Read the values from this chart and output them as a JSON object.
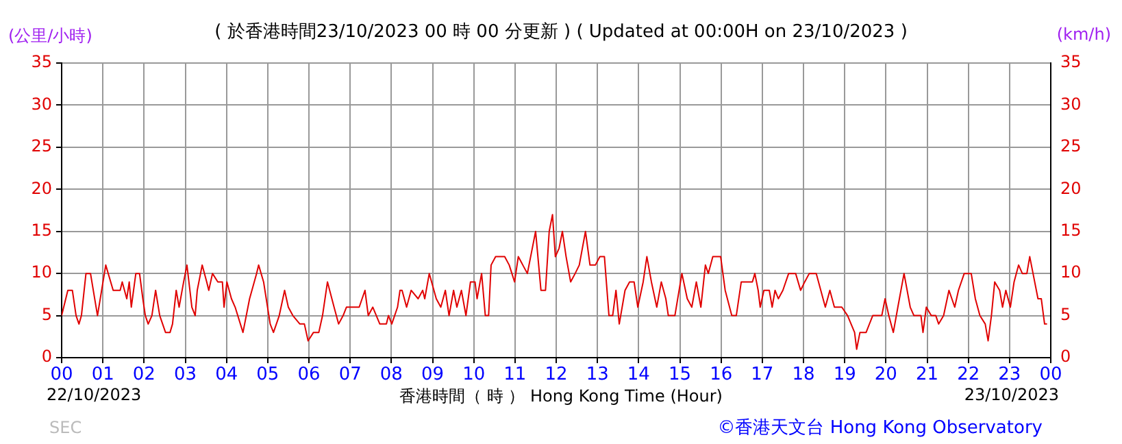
{
  "chart_data": {
    "type": "line",
    "title": "( 於香港時間23/10/2023 00 時 00 分更新 ) ( Updated at 00:00H on 23/10/2023 )",
    "ylabel": "(公里/小時)",
    "y2label": "(km/h)",
    "xlabel": "香港時間（ 時 ） Hong Kong Time (Hour)",
    "annotations": [
      "22/10/2023",
      "23/10/2023",
      "SEC",
      "©香港天文台 Hong Kong Observatory"
    ],
    "xlim": [
      0,
      24
    ],
    "xticks": [
      {
        "value": 0,
        "label": "00"
      },
      {
        "value": 1,
        "label": "01"
      },
      {
        "value": 2,
        "label": "02"
      },
      {
        "value": 3,
        "label": "03"
      },
      {
        "value": 4,
        "label": "04"
      },
      {
        "value": 5,
        "label": "05"
      },
      {
        "value": 6,
        "label": "06"
      },
      {
        "value": 7,
        "label": "07"
      },
      {
        "value": 8,
        "label": "08"
      },
      {
        "value": 9,
        "label": "09"
      },
      {
        "value": 10,
        "label": "10"
      },
      {
        "value": 11,
        "label": "11"
      },
      {
        "value": 12,
        "label": "12"
      },
      {
        "value": 13,
        "label": "13"
      },
      {
        "value": 14,
        "label": "14"
      },
      {
        "value": 15,
        "label": "15"
      },
      {
        "value": 16,
        "label": "16"
      },
      {
        "value": 17,
        "label": "17"
      },
      {
        "value": 18,
        "label": "18"
      },
      {
        "value": 19,
        "label": "19"
      },
      {
        "value": 20,
        "label": "20"
      },
      {
        "value": 21,
        "label": "21"
      },
      {
        "value": 22,
        "label": "22"
      },
      {
        "value": 23,
        "label": "23"
      },
      {
        "value": 24,
        "label": "00"
      }
    ],
    "ylim": [
      0,
      35
    ],
    "yticks": [
      0,
      5,
      10,
      15,
      20,
      25,
      30,
      35
    ],
    "y2lim": [
      0,
      35
    ],
    "y2ticks": [
      0,
      5,
      10,
      15,
      20,
      25,
      30,
      35
    ],
    "grid": true,
    "legend": false,
    "marker": "none",
    "line_style": "solid",
    "x": [
      0.0,
      0.15,
      0.26,
      0.35,
      0.42,
      0.48,
      0.59,
      0.7,
      0.87,
      1.07,
      1.25,
      1.42,
      1.47,
      1.58,
      1.64,
      1.69,
      1.8,
      1.89,
      1.97,
      2.03,
      2.1,
      2.19,
      2.28,
      2.38,
      2.52,
      2.63,
      2.69,
      2.78,
      2.85,
      2.96,
      3.04,
      3.16,
      3.24,
      3.29,
      3.41,
      3.52,
      3.57,
      3.66,
      3.79,
      3.9,
      3.94,
      4.01,
      4.12,
      4.21,
      4.4,
      4.56,
      4.73,
      4.78,
      4.9,
      5.06,
      5.14,
      5.28,
      5.41,
      5.5,
      5.61,
      5.78,
      5.89,
      5.98,
      6.11,
      6.24,
      6.33,
      6.45,
      6.61,
      6.72,
      6.83,
      6.91,
      7.22,
      7.36,
      7.44,
      7.55,
      7.72,
      7.88,
      7.93,
      8.01,
      8.15,
      8.21,
      8.26,
      8.37,
      8.48,
      8.65,
      8.76,
      8.81,
      8.92,
      9.09,
      9.2,
      9.31,
      9.4,
      9.51,
      9.59,
      9.7,
      9.81,
      9.92,
      10.03,
      10.08,
      10.19,
      10.28,
      10.36,
      10.42,
      10.53,
      10.75,
      10.86,
      10.99,
      11.08,
      11.3,
      11.5,
      11.63,
      11.74,
      11.83,
      11.91,
      11.98,
      12.07,
      12.15,
      12.24,
      12.35,
      12.46,
      12.56,
      12.71,
      12.82,
      12.95,
      13.06,
      13.17,
      13.28,
      13.37,
      13.45,
      13.53,
      13.67,
      13.78,
      13.89,
      13.98,
      14.11,
      14.2,
      14.31,
      14.44,
      14.55,
      14.66,
      14.72,
      14.88,
      15.05,
      15.18,
      15.29,
      15.4,
      15.51,
      15.62,
      15.69,
      15.8,
      15.99,
      16.1,
      16.26,
      16.37,
      16.49,
      16.76,
      16.82,
      16.9,
      16.95,
      17.04,
      17.17,
      17.24,
      17.31,
      17.39,
      17.5,
      17.64,
      17.81,
      17.93,
      18.03,
      18.14,
      18.31,
      18.42,
      18.53,
      18.64,
      18.75,
      18.93,
      19.07,
      19.24,
      19.29,
      19.37,
      19.52,
      19.68,
      19.9,
      19.98,
      20.07,
      20.18,
      20.29,
      20.44,
      20.59,
      20.68,
      20.85,
      20.9,
      20.98,
      21.1,
      21.21,
      21.28,
      21.4,
      21.53,
      21.67,
      21.76,
      21.9,
      22.07,
      22.17,
      22.28,
      22.41,
      22.48,
      22.56,
      22.64,
      22.76,
      22.83,
      22.91,
      23.02,
      23.11,
      23.22,
      23.31,
      23.42,
      23.49,
      23.57,
      23.69,
      23.77,
      23.85,
      23.91
    ],
    "series": [
      {
        "color": "#e00000",
        "axis": "y",
        "values": [
          5,
          8,
          8,
          5,
          4,
          5,
          10,
          10,
          5,
          11,
          8,
          8,
          9,
          7,
          9,
          6,
          10,
          10,
          7,
          5,
          4,
          5,
          8,
          5,
          3,
          3,
          4,
          8,
          6,
          9,
          11,
          6,
          5,
          8,
          11,
          9,
          8,
          10,
          9,
          9,
          6,
          9,
          7,
          6,
          3,
          7,
          10,
          11,
          9,
          4,
          3,
          5,
          8,
          6,
          5,
          4,
          4,
          2,
          3,
          3,
          5,
          9,
          6,
          4,
          5,
          6,
          6,
          8,
          5,
          6,
          4,
          4,
          5,
          4,
          6,
          8,
          8,
          6,
          8,
          7,
          8,
          7,
          10,
          7,
          6,
          8,
          5,
          8,
          6,
          8,
          5,
          9,
          9,
          7,
          10,
          5,
          5,
          11,
          12,
          12,
          11,
          9,
          12,
          10,
          15,
          8,
          8,
          15,
          17,
          12,
          13,
          15,
          12,
          9,
          10,
          11,
          15,
          11,
          11,
          12,
          12,
          5,
          5,
          8,
          4,
          8,
          9,
          9,
          6,
          9,
          12,
          9,
          6,
          9,
          7,
          5,
          5,
          10,
          7,
          6,
          9,
          6,
          11,
          10,
          12,
          12,
          8,
          5,
          5,
          9,
          9,
          10,
          8,
          6,
          8,
          8,
          6,
          8,
          7,
          8,
          10,
          10,
          8,
          9,
          10,
          10,
          8,
          6,
          8,
          6,
          6,
          5,
          3,
          1,
          3,
          3,
          5,
          5,
          7,
          5,
          3,
          6,
          10,
          6,
          5,
          5,
          3,
          6,
          5,
          5,
          4,
          5,
          8,
          6,
          8,
          10,
          10,
          7,
          5,
          4,
          2,
          5,
          9,
          8,
          6,
          8,
          6,
          9,
          11,
          10,
          10,
          12,
          10,
          7,
          7,
          4,
          4
        ]
      }
    ]
  }
}
